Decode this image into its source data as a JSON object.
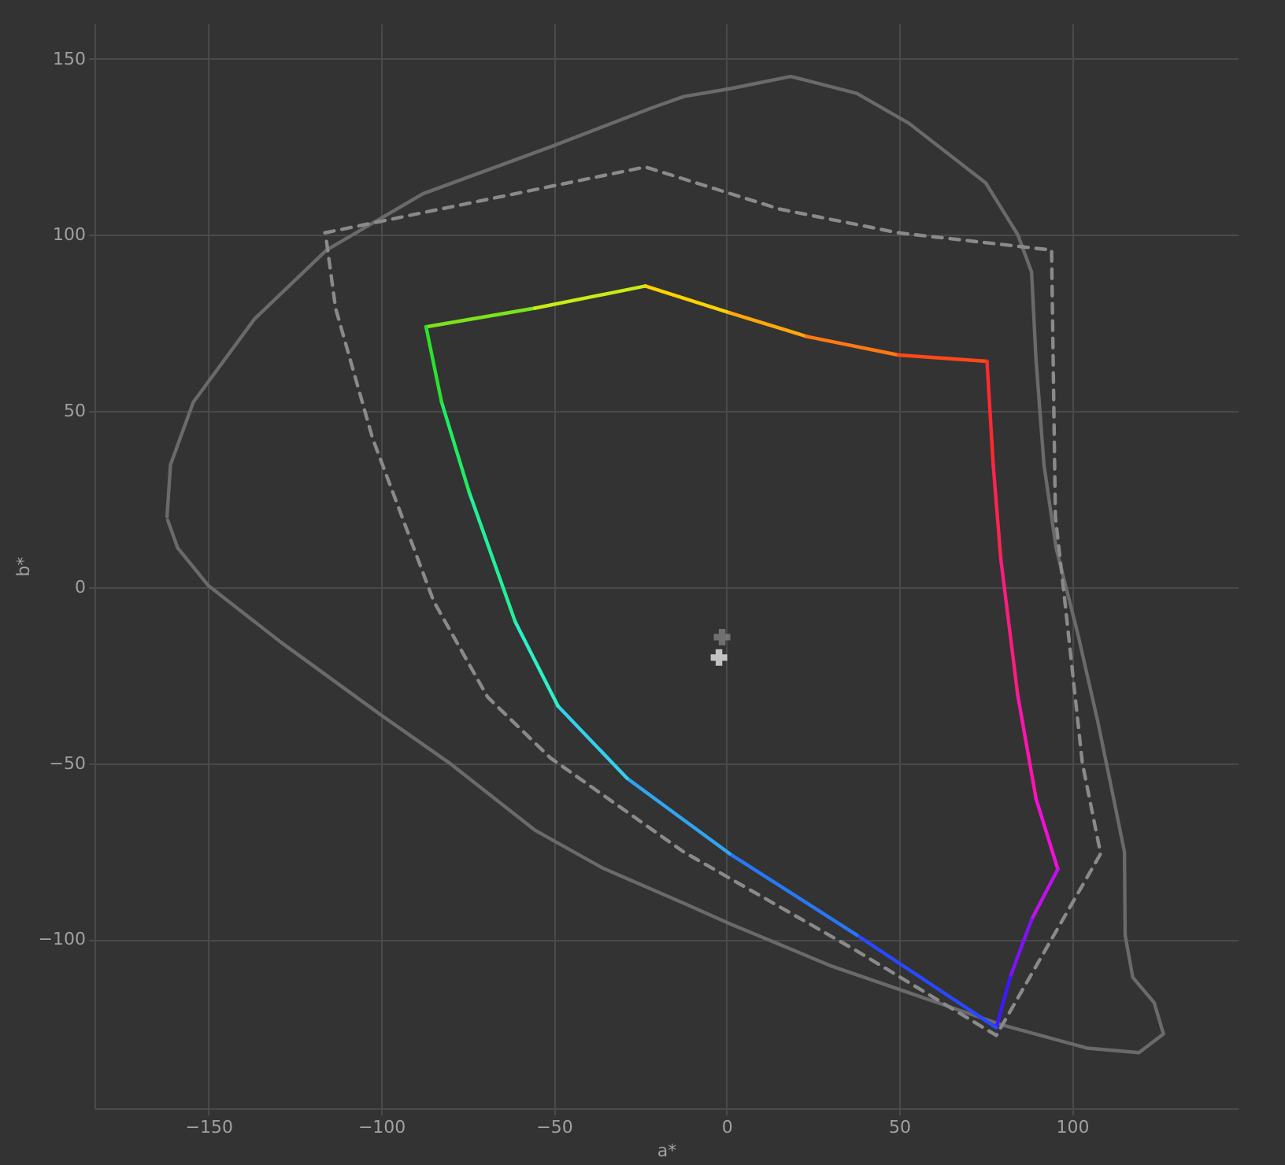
{
  "chart_data": {
    "type": "line",
    "xlabel": "a*",
    "ylabel": "b*",
    "xlim": [
      -183,
      148
    ],
    "ylim": [
      -148,
      160
    ],
    "xticks": [
      -150,
      -100,
      -50,
      0,
      50,
      100
    ],
    "yticks": [
      -100,
      -50,
      0,
      50,
      100,
      150
    ],
    "grid": true,
    "line_style": "solid",
    "series": [
      {
        "color": "#6a6a6a",
        "x": [
          -162,
          -161,
          -154.4,
          -136.7,
          -115.8,
          -87.9,
          -51,
          -21.3,
          -12.4,
          0.9,
          18.6,
          37.7,
          52.8,
          75,
          84.3,
          88.3,
          89.6,
          91.9,
          95.4,
          101.6,
          107.4,
          111.8,
          115.2,
          115.4,
          117.6,
          123.8,
          126.5,
          119.4,
          104.3,
          79.4,
          53.1,
          30.6,
          1.2,
          -12.1,
          -36,
          -55.5,
          -80.3,
          -99.8,
          -129.1,
          -150,
          -158.9,
          -161.8
        ],
        "values": [
          20,
          34.7,
          52.5,
          76.1,
          95.7,
          111.7,
          125,
          136.2,
          139.3,
          141.5,
          145,
          140.2,
          131.7,
          114.8,
          100.1,
          89.5,
          64.5,
          34.7,
          11.1,
          -12.9,
          -37.8,
          -58.8,
          -75.2,
          -98.8,
          -110.8,
          -118,
          -126.9,
          -132.2,
          -130.9,
          -124.2,
          -115.3,
          -107.7,
          -95.7,
          -89.9,
          -79.7,
          -69,
          -49.9,
          -36.5,
          -15.6,
          0.4,
          11.1,
          19
        ]
      },
      {
        "color": "#8a8a8a",
        "line_style": "dashed",
        "x": [
          -116.3,
          -23.5,
          15.5,
          49.7,
          94.1,
          95.2,
          97.6,
          103,
          108.3,
          78.1,
          37.7,
          -12.4,
          -51,
          -69.2,
          -84.8,
          -102.5,
          -113.2,
          -116.1
        ],
        "values": [
          100.6,
          119.3,
          107.3,
          100.6,
          95.7,
          20,
          -0.9,
          -49.9,
          -75.7,
          -127.3,
          -103.3,
          -75.2,
          -48.5,
          -31.2,
          -4,
          42.3,
          79.2,
          100.2
        ]
      },
      {
        "color": "#7be31c",
        "x": [
          -87,
          -55.5
        ],
        "values": [
          73.9,
          79.2
        ]
      },
      {
        "color": "#c8ec14",
        "x": [
          -55.5,
          -23.5
        ],
        "values": [
          79.2,
          85.5
        ]
      },
      {
        "color": "#ffd200",
        "x": [
          -23.5,
          0.9
        ],
        "values": [
          85.5,
          77.9
        ]
      },
      {
        "color": "#ffa80c",
        "x": [
          0.9,
          23.1
        ],
        "values": [
          77.9,
          71.2
        ]
      },
      {
        "color": "#ff7812",
        "x": [
          23.1,
          49.7
        ],
        "values": [
          71.2,
          65.9
        ]
      },
      {
        "color": "#ff4818",
        "x": [
          49.7,
          75.4
        ],
        "values": [
          65.9,
          64.1
        ]
      },
      {
        "color": "#ff2a2e",
        "x": [
          75.4,
          77.2
        ],
        "values": [
          64.1,
          34.7
        ]
      },
      {
        "color": "#ff2450",
        "x": [
          77.2,
          79.4
        ],
        "values": [
          34.7,
          8
        ]
      },
      {
        "color": "#ff1c80",
        "x": [
          79.4,
          84.3
        ],
        "values": [
          8,
          -30.7
        ]
      },
      {
        "color": "#ff14b0",
        "x": [
          84.3,
          89.6
        ],
        "values": [
          -30.7,
          -60.1
        ]
      },
      {
        "color": "#f010d8",
        "x": [
          89.6,
          95.9
        ],
        "values": [
          -60.1,
          -80.1
        ]
      },
      {
        "color": "#c010ee",
        "x": [
          95.9,
          88.3
        ],
        "values": [
          -80.1,
          -94.4
        ]
      },
      {
        "color": "#8012f8",
        "x": [
          88.3,
          82.1
        ],
        "values": [
          -94.4,
          -110.8
        ]
      },
      {
        "color": "#4018ff",
        "x": [
          82.1,
          78.1
        ],
        "values": [
          -110.8,
          -125.1
        ]
      },
      {
        "color": "#2848ff",
        "x": [
          78.1,
          37.7
        ],
        "values": [
          -125.1,
          -98.8
        ]
      },
      {
        "color": "#2878f4",
        "x": [
          37.7,
          0.9
        ],
        "values": [
          -98.8,
          -75.7
        ]
      },
      {
        "color": "#30a4f0",
        "x": [
          0.9,
          -28.8
        ],
        "values": [
          -75.7,
          -54.3
        ]
      },
      {
        "color": "#34d0ec",
        "x": [
          -28.8,
          -48.8
        ],
        "values": [
          -54.3,
          -33.8
        ]
      },
      {
        "color": "#2cf0c8",
        "x": [
          -48.8,
          -61.2
        ],
        "values": [
          -33.8,
          -9.8
        ]
      },
      {
        "color": "#22f098",
        "x": [
          -61.2,
          -74.6
        ],
        "values": [
          -9.8,
          27.2
        ]
      },
      {
        "color": "#20ec60",
        "x": [
          -74.6,
          -82.5
        ],
        "values": [
          27.2,
          52.5
        ]
      },
      {
        "color": "#2ce22c",
        "x": [
          -82.5,
          -87
        ],
        "values": [
          52.5,
          73.9
        ]
      },
      {
        "type": "scatter",
        "marker": "cross",
        "color": "#8a8a8a",
        "x": [
          -1.3
        ],
        "values": [
          -14.2
        ]
      },
      {
        "type": "scatter",
        "marker": "cross",
        "color": "#ffffff",
        "x": [
          -2.2
        ],
        "values": [
          -20
        ]
      }
    ]
  }
}
